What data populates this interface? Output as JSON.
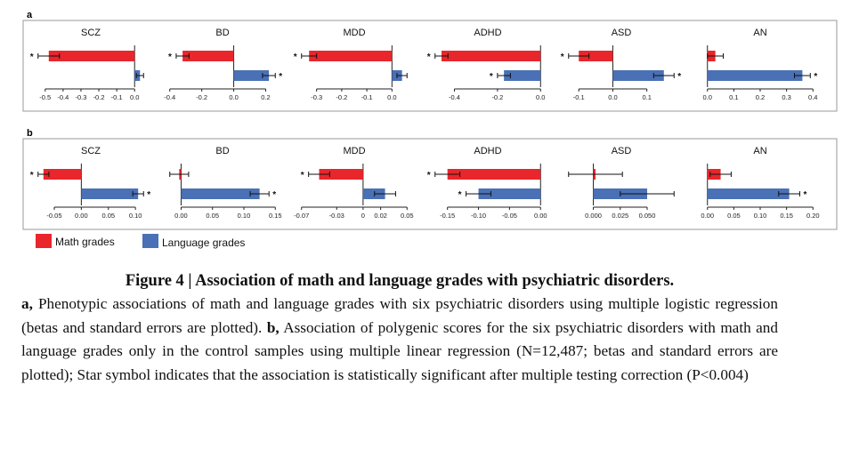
{
  "colors": {
    "math": "#e8262b",
    "language": "#4a70b5",
    "axis": "#333333",
    "frame": "#999999"
  },
  "legend": {
    "math": "Math grades",
    "language": "Language grades"
  },
  "caption": {
    "title": "Figure 4 | Association of math and language grades with psychiatric disorders.",
    "a_label": "a,",
    "a_text": " Phenotypic associations of math and language grades with six psychiatric disorders using multiple logistic regression (betas and standard errors are plotted). ",
    "b_label": "b,",
    "b_text": " Association of polygenic scores for the six psychiatric disorders with math and language grades only in the control samples using multiple linear regression (N=12,487; betas and standard errors are plotted); Star symbol indicates that the association is statistically significant after multiple testing correction (P<0.004)"
  },
  "chart_data": [
    {
      "panel": "a",
      "type": "bar",
      "orientation": "horizontal",
      "subplots": [
        {
          "title": "SCZ",
          "xlim": [
            -0.5,
            0.0
          ],
          "ticks": [
            "-0.5",
            "-0.4",
            "-0.3",
            "-0.2",
            "-0.1",
            "0.0"
          ],
          "math": {
            "value": -0.48,
            "se": 0.06,
            "sig": true
          },
          "language": {
            "value": 0.03,
            "se": 0.02,
            "sig": false
          }
        },
        {
          "title": "BD",
          "xlim": [
            -0.4,
            0.2
          ],
          "ticks": [
            "-0.4",
            "-0.2",
            "0.0",
            "0.2"
          ],
          "math": {
            "value": -0.32,
            "se": 0.04,
            "sig": true
          },
          "language": {
            "value": 0.22,
            "se": 0.04,
            "sig": true
          }
        },
        {
          "title": "MDD",
          "xlim": [
            -0.3,
            0.0
          ],
          "ticks": [
            "-0.3",
            "-0.2",
            "-0.1",
            "0.0"
          ],
          "math": {
            "value": -0.33,
            "se": 0.03,
            "sig": true
          },
          "language": {
            "value": 0.04,
            "se": 0.02,
            "sig": false
          }
        },
        {
          "title": "ADHD",
          "xlim": [
            -0.4,
            0.0
          ],
          "ticks": [
            "-0.4",
            "-0.2",
            "0.0"
          ],
          "math": {
            "value": -0.46,
            "se": 0.03,
            "sig": true
          },
          "language": {
            "value": -0.17,
            "se": 0.03,
            "sig": true
          }
        },
        {
          "title": "ASD",
          "xlim": [
            -0.1,
            0.1
          ],
          "ticks": [
            "-0.1",
            "0.0",
            "0.1"
          ],
          "math": {
            "value": -0.1,
            "se": 0.03,
            "sig": true
          },
          "language": {
            "value": 0.15,
            "se": 0.03,
            "sig": true
          }
        },
        {
          "title": "AN",
          "xlim": [
            0.0,
            0.4
          ],
          "ticks": [
            "0.0",
            "0.1",
            "0.2",
            "0.3",
            "0.4"
          ],
          "math": {
            "value": 0.03,
            "se": 0.03,
            "sig": false
          },
          "language": {
            "value": 0.36,
            "se": 0.03,
            "sig": true
          }
        }
      ]
    },
    {
      "panel": "b",
      "type": "bar",
      "orientation": "horizontal",
      "subplots": [
        {
          "title": "SCZ",
          "xlim": [
            -0.05,
            0.1
          ],
          "ticks": [
            "-0.05",
            "0.00",
            "0.05",
            "0.10"
          ],
          "math": {
            "value": -0.07,
            "se": 0.01,
            "sig": true
          },
          "language": {
            "value": 0.105,
            "se": 0.01,
            "sig": true
          }
        },
        {
          "title": "BD",
          "xlim": [
            0.0,
            0.15
          ],
          "ticks": [
            "0.00",
            "0.05",
            "0.10",
            "0.15"
          ],
          "math": {
            "value": -0.003,
            "se": 0.015,
            "sig": false
          },
          "language": {
            "value": 0.125,
            "se": 0.015,
            "sig": true
          }
        },
        {
          "title": "MDD",
          "xlim": [
            -0.07,
            0.05
          ],
          "ticks": [
            "-0.07",
            "-0.03",
            "0",
            "0.02",
            "0.05"
          ],
          "math": {
            "value": -0.05,
            "se": 0.012,
            "sig": true
          },
          "language": {
            "value": 0.025,
            "se": 0.012,
            "sig": false
          }
        },
        {
          "title": "ADHD",
          "xlim": [
            -0.15,
            0.0
          ],
          "ticks": [
            "-0.15",
            "-0.10",
            "-0.05",
            "0.00"
          ],
          "math": {
            "value": -0.15,
            "se": 0.02,
            "sig": true
          },
          "language": {
            "value": -0.1,
            "se": 0.02,
            "sig": true
          }
        },
        {
          "title": "ASD",
          "xlim": [
            0.0,
            0.05
          ],
          "ticks": [
            "0.000",
            "0.025",
            "0.050"
          ],
          "math": {
            "value": 0.002,
            "se": 0.025,
            "sig": false
          },
          "language": {
            "value": 0.05,
            "se": 0.025,
            "sig": false
          }
        },
        {
          "title": "AN",
          "xlim": [
            0.0,
            0.2
          ],
          "ticks": [
            "0.00",
            "0.05",
            "0.10",
            "0.15",
            "0.20"
          ],
          "math": {
            "value": 0.025,
            "se": 0.02,
            "sig": false
          },
          "language": {
            "value": 0.155,
            "se": 0.02,
            "sig": true
          }
        }
      ]
    }
  ]
}
